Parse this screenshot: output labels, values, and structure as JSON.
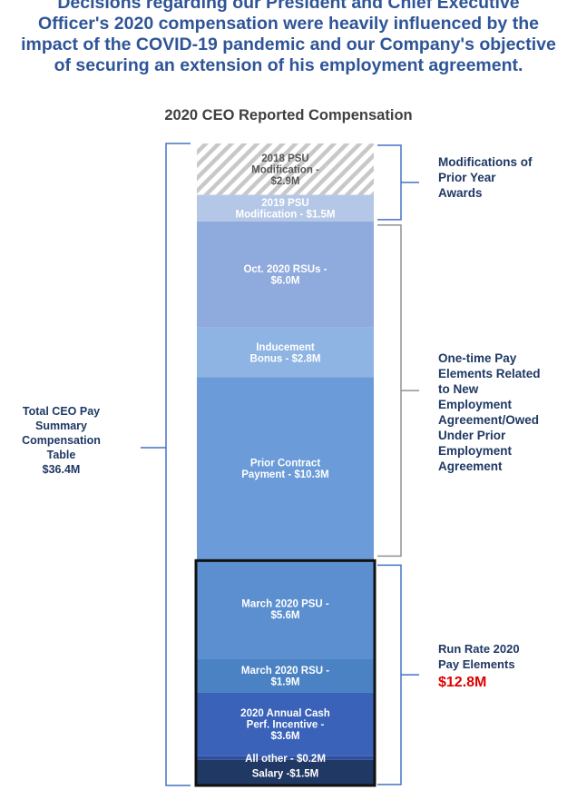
{
  "headline": [
    "Decisions regarding our President and Chief Executive",
    "Officer's 2020 compensation were heavily influenced by the",
    "impact of the COVID-19 pandemic and our Company's objective",
    "of securing an extension of his employment agreement."
  ],
  "chart_data": {
    "type": "bar",
    "stacked": true,
    "title": "2020 CEO Reported Compensation",
    "unit": "$M",
    "total": 36.4,
    "segments": [
      {
        "name": "2018 PSU Modification",
        "value": 2.9,
        "lines": [
          "2018 PSU",
          "Modification -",
          "$2.9M"
        ],
        "color": "#d0d0d0",
        "pattern": "hatch",
        "group": "modifications"
      },
      {
        "name": "2019 PSU Modification",
        "value": 1.5,
        "lines": [
          "2019 PSU",
          "Modification - $1.5M"
        ],
        "color": "#b4c7e7",
        "group": "modifications"
      },
      {
        "name": "Oct. 2020 RSUs",
        "value": 6.0,
        "lines": [
          "Oct. 2020 RSUs -",
          "$6.0M"
        ],
        "color": "#8faadc",
        "group": "one_time"
      },
      {
        "name": "Inducement Bonus",
        "value": 2.8,
        "lines": [
          "Inducement",
          "Bonus - $2.8M"
        ],
        "color": "#8eb4e3",
        "group": "one_time"
      },
      {
        "name": "Prior Contract Payment",
        "value": 10.3,
        "lines": [
          "Prior Contract",
          "Payment - $10.3M"
        ],
        "color": "#6b9bd8",
        "group": "one_time"
      },
      {
        "name": "March 2020 PSU",
        "value": 5.6,
        "lines": [
          "March 2020 PSU -",
          "$5.6M"
        ],
        "color": "#5b8fd0",
        "group": "run_rate"
      },
      {
        "name": "March 2020 RSU",
        "value": 1.9,
        "lines": [
          "March 2020 RSU -",
          "$1.9M"
        ],
        "color": "#4a82c4",
        "group": "run_rate"
      },
      {
        "name": "2020 Annual Cash Perf. Incentive",
        "value": 3.6,
        "lines": [
          "2020 Annual Cash",
          "Perf. Incentive -",
          "$3.6M"
        ],
        "color": "#3a62b8",
        "group": "run_rate"
      },
      {
        "name": "All other",
        "value": 0.2,
        "lines": [
          "All other - $0.2M"
        ],
        "color": "#2f4f9e",
        "group": "run_rate"
      },
      {
        "name": "Salary",
        "value": 1.5,
        "lines": [
          "Salary -$1.5M"
        ],
        "color": "#203864",
        "group": "run_rate"
      }
    ],
    "annotations": {
      "total": [
        "Total CEO Pay",
        "Summary",
        "Compensation",
        "Table",
        "$36.4M"
      ],
      "modifications": [
        "Modifications of",
        "Prior Year",
        "Awards"
      ],
      "one_time": [
        "One-time Pay",
        "Elements Related",
        "to New",
        "Employment",
        "Agreement/Owed",
        "Under Prior",
        "Employment",
        "Agreement"
      ],
      "run_rate": [
        "Run Rate 2020",
        "Pay Elements"
      ],
      "run_rate_total": "$12.8M"
    }
  },
  "colors": {
    "headline": "#2f5597",
    "annotation": "#1f3864",
    "bracket": "#4472c4",
    "highlight": "#e00000"
  }
}
